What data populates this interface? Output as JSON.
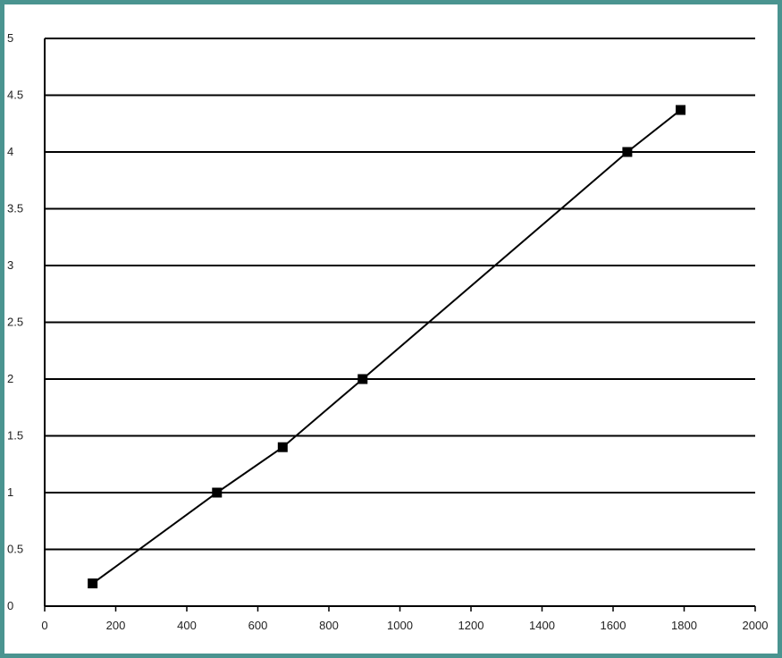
{
  "chart_data": {
    "type": "line",
    "title": "",
    "xlabel": "",
    "ylabel": "",
    "xlim": [
      0,
      2000
    ],
    "ylim": [
      0,
      5
    ],
    "x_ticks": [
      "0",
      "200",
      "400",
      "600",
      "800",
      "1000",
      "1200",
      "1400",
      "1600",
      "1800",
      "2000"
    ],
    "y_ticks": [
      "0",
      "0.5",
      "1",
      "1.5",
      "2",
      "2.5",
      "3",
      "3.5",
      "4",
      "4.5",
      "5"
    ],
    "grid": "horizontal",
    "legend": "none",
    "series": [
      {
        "marker": "square",
        "points": [
          {
            "x": 135,
            "y": 0.2
          },
          {
            "x": 485,
            "y": 1.0
          },
          {
            "x": 670,
            "y": 1.4
          },
          {
            "x": 895,
            "y": 2.0
          },
          {
            "x": 1640,
            "y": 4.0
          },
          {
            "x": 1790,
            "y": 4.37
          }
        ]
      }
    ]
  },
  "colors": {
    "frame": "#4a9490",
    "grid": "#000000",
    "line": "#000000",
    "marker": "#000000"
  }
}
